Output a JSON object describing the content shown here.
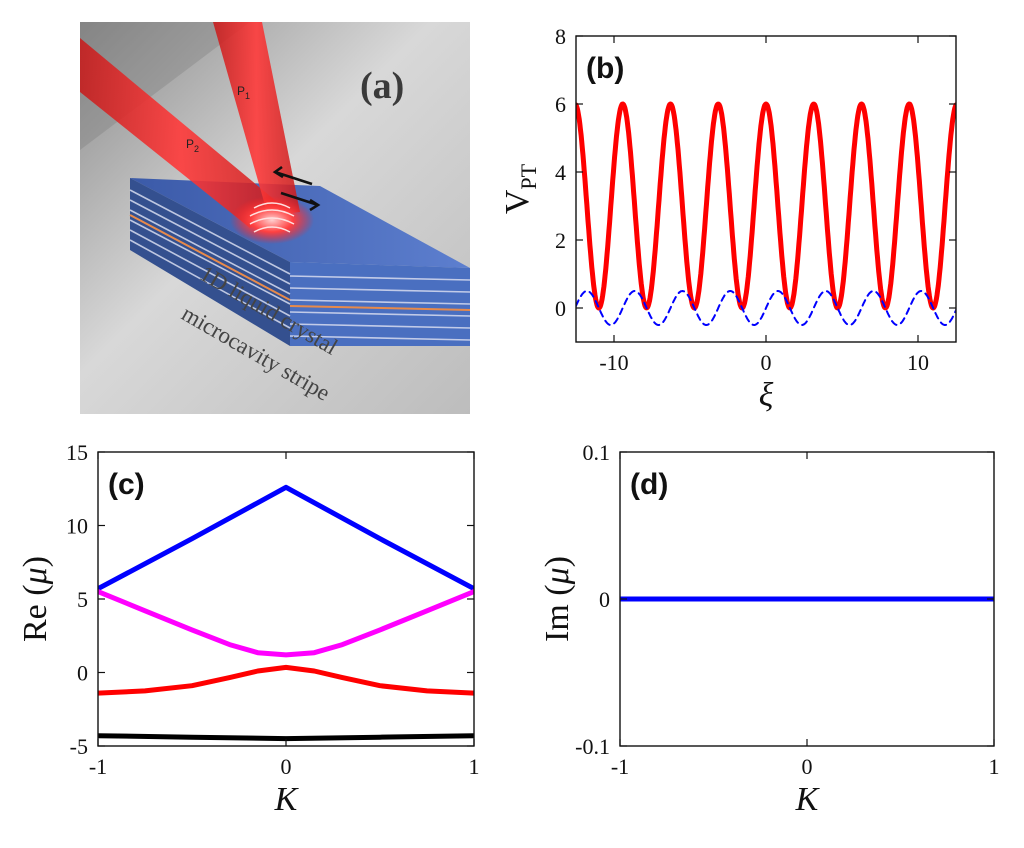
{
  "panel_a": {
    "label": "(a)",
    "caption_line1": "1D liquid crystal",
    "caption_line2": "microcavity stripe",
    "beam1": "P",
    "beam1_sub": "1",
    "beam2": "P",
    "beam2_sub": "2"
  },
  "chart_data": [
    {
      "panel": "(b)",
      "type": "line",
      "xlabel": "ξ",
      "ylabel": "V",
      "ylabel_sub": "PT",
      "xlim": [
        -12.5,
        12.5
      ],
      "ylim": [
        -1,
        8
      ],
      "xticks": [
        "-10",
        "0",
        "10"
      ],
      "yticks": [
        "0",
        "2",
        "4",
        "6",
        "8"
      ],
      "series": [
        {
          "style": "solid",
          "color": "#ff0000",
          "formula": "3+3*cos(2*xi)",
          "amplitude": 3,
          "offset": 3,
          "wavenumber": 2
        },
        {
          "style": "dashed",
          "color": "#0000ff",
          "formula": "0.5*sin(2*xi)",
          "amplitude": 0.5,
          "offset": 0,
          "wavenumber": 2
        }
      ]
    },
    {
      "panel": "(c)",
      "type": "line",
      "xlabel": "K",
      "ylabel": "Re",
      "ylabel_arg": "μ",
      "xlim": [
        -1,
        1
      ],
      "ylim": [
        -5,
        15
      ],
      "xticks": [
        "-1",
        "0",
        "1"
      ],
      "yticks": [
        "-5",
        "0",
        "5",
        "10",
        "15"
      ],
      "series": [
        {
          "color": "#0000ff",
          "x": [
            -1,
            -0.5,
            0,
            0.5,
            1
          ],
          "y": [
            5.7,
            9.1,
            12.6,
            9.1,
            5.7
          ]
        },
        {
          "color": "#ff00ff",
          "x": [
            -1,
            -0.75,
            -0.5,
            -0.3,
            -0.15,
            0,
            0.15,
            0.3,
            0.5,
            0.75,
            1
          ],
          "y": [
            5.5,
            4.2,
            2.9,
            1.9,
            1.35,
            1.2,
            1.35,
            1.9,
            2.9,
            4.2,
            5.5
          ]
        },
        {
          "color": "#ff0000",
          "x": [
            -1,
            -0.75,
            -0.5,
            -0.3,
            -0.15,
            0,
            0.15,
            0.3,
            0.5,
            0.75,
            1
          ],
          "y": [
            -1.4,
            -1.25,
            -0.9,
            -0.35,
            0.1,
            0.35,
            0.1,
            -0.35,
            -0.9,
            -1.25,
            -1.4
          ]
        },
        {
          "color": "#000000",
          "x": [
            -1,
            -0.5,
            0,
            0.5,
            1
          ],
          "y": [
            -4.3,
            -4.4,
            -4.5,
            -4.4,
            -4.3
          ]
        }
      ]
    },
    {
      "panel": "(d)",
      "type": "line",
      "xlabel": "K",
      "ylabel": "Im",
      "ylabel_arg": "μ",
      "xlim": [
        -1,
        1
      ],
      "ylim": [
        -0.1,
        0.1
      ],
      "xticks": [
        "-1",
        "0",
        "1"
      ],
      "yticks": [
        "-0.1",
        "0",
        "0.1"
      ],
      "series": [
        {
          "color": "#0000ff",
          "x": [
            -1,
            1
          ],
          "y": [
            0,
            0
          ]
        }
      ]
    }
  ]
}
